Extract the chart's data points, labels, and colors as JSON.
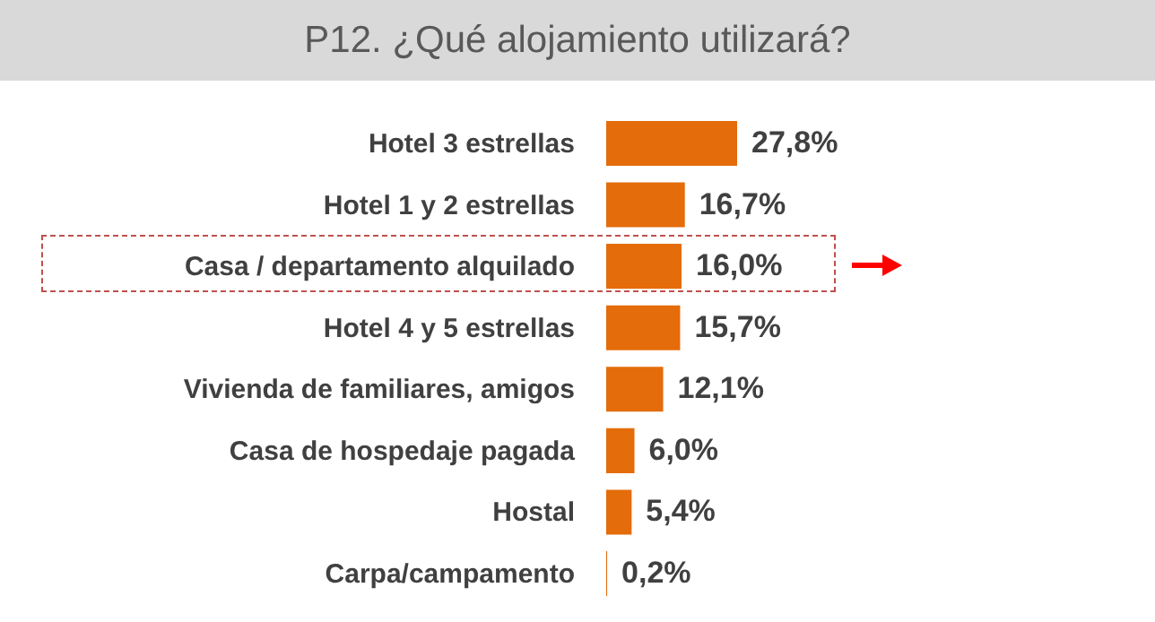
{
  "chart_data": {
    "type": "bar",
    "orientation": "horizontal",
    "title": "P12. ¿Qué alojamiento utilizará?",
    "categories": [
      "Hotel 3 estrellas",
      "Hotel 1 y 2 estrellas",
      "Casa / departamento alquilado",
      "Hotel 4 y 5 estrellas",
      "Vivienda de familiares, amigos",
      "Casa de hospedaje pagada",
      "Hostal",
      "Carpa/campamento"
    ],
    "values": [
      27.8,
      16.7,
      16.0,
      15.7,
      12.1,
      6.0,
      5.4,
      0.2
    ],
    "value_labels": [
      "27,8%",
      "16,7%",
      "16,0%",
      "15,7%",
      "12,1%",
      "6,0%",
      "5,4%",
      "0,2%"
    ],
    "color": "#e46c0a"
  }
}
